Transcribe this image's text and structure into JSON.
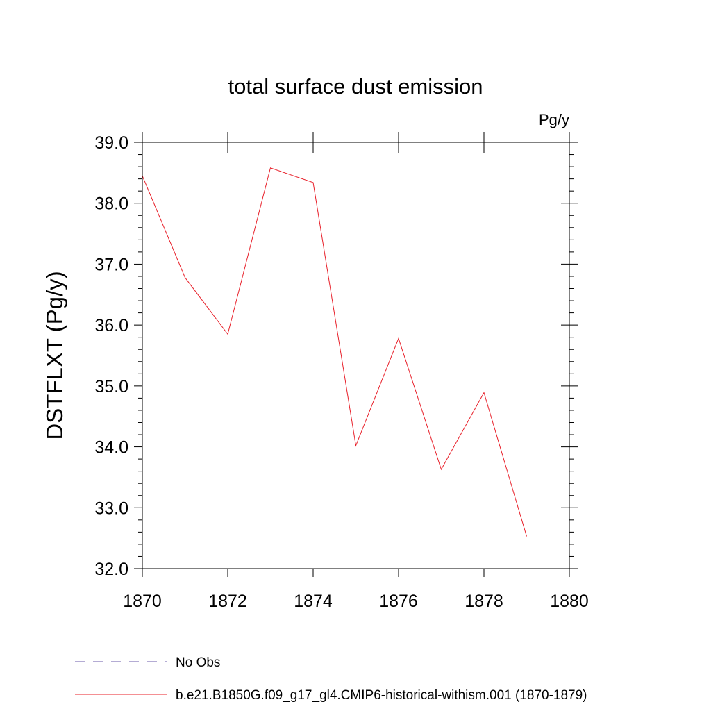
{
  "chart_data": {
    "type": "line",
    "title": "total surface dust emission",
    "units_label": "Pg/y",
    "ylabel": "DSTFLXT  (Pg/y)",
    "xlabel": "",
    "xlim": [
      1870,
      1880
    ],
    "ylim": [
      32.0,
      39.0
    ],
    "x_ticks": [
      1870,
      1872,
      1874,
      1876,
      1878,
      1880
    ],
    "x_tick_labels": [
      "1870",
      "1872",
      "1874",
      "1876",
      "1878",
      "1880"
    ],
    "y_ticks": [
      32.0,
      33.0,
      34.0,
      35.0,
      36.0,
      37.0,
      38.0,
      39.0
    ],
    "y_tick_labels": [
      "32.0",
      "33.0",
      "34.0",
      "35.0",
      "36.0",
      "37.0",
      "38.0",
      "39.0"
    ],
    "grid": false,
    "legend_position": "bottom-left",
    "series": [
      {
        "name": "b.e21.B1850G.f09_g17_gl4.CMIP6-historical-withism.001 (1870-1879)",
        "color": "#e8202a",
        "style": "solid",
        "x": [
          1870,
          1871,
          1872,
          1873,
          1874,
          1875,
          1876,
          1877,
          1878,
          1879
        ],
        "values": [
          38.45,
          36.78,
          35.85,
          38.58,
          38.34,
          34.02,
          35.78,
          33.63,
          34.89,
          32.53
        ]
      }
    ],
    "legend": [
      {
        "label": "No Obs",
        "color": "#6a5aa8",
        "style": "dashed"
      },
      {
        "label": "b.e21.B1850G.f09_g17_gl4.CMIP6-historical-withism.001 (1870-1879)",
        "color": "#e8202a",
        "style": "solid"
      }
    ]
  }
}
